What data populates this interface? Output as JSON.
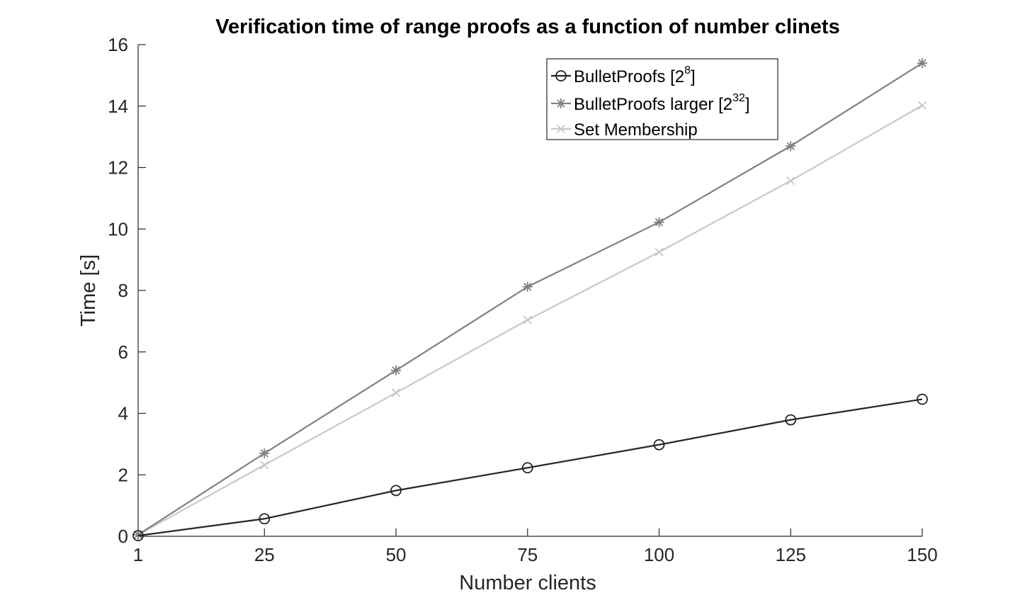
{
  "chart_data": {
    "type": "line",
    "title": "Verification time of range proofs as a function of number clinets",
    "xlabel": "Number clients",
    "ylabel": "Time [s]",
    "x": [
      1,
      25,
      50,
      75,
      100,
      125,
      150
    ],
    "xticks": [
      "1",
      "25",
      "50",
      "75",
      "100",
      "125",
      "150"
    ],
    "yticks": [
      "0",
      "2",
      "4",
      "6",
      "8",
      "10",
      "12",
      "14",
      "16"
    ],
    "xlim": [
      1,
      150
    ],
    "ylim": [
      0,
      16
    ],
    "grid": false,
    "legend_position": "top-right",
    "series": [
      {
        "name": "BulletProofs [2^8]",
        "legend_base": "BulletProofs [2",
        "legend_sup": "8",
        "legend_tail": "]",
        "marker": "circle",
        "color": "#262626",
        "values": [
          0.02,
          0.57,
          1.49,
          2.23,
          2.98,
          3.79,
          4.46
        ]
      },
      {
        "name": "BulletProofs larger [2^32]",
        "legend_base": "BulletProofs larger [2",
        "legend_sup": "32",
        "legend_tail": "]",
        "marker": "asterisk",
        "color": "#808080",
        "values": [
          0.05,
          2.7,
          5.4,
          8.12,
          10.22,
          12.7,
          15.4
        ]
      },
      {
        "name": "Set Membership",
        "legend_base": "Set Membership",
        "legend_sup": "",
        "legend_tail": "",
        "marker": "x",
        "color": "#c8c8c8",
        "values": [
          0.05,
          2.32,
          4.67,
          7.04,
          9.25,
          11.57,
          14.02
        ]
      }
    ]
  }
}
